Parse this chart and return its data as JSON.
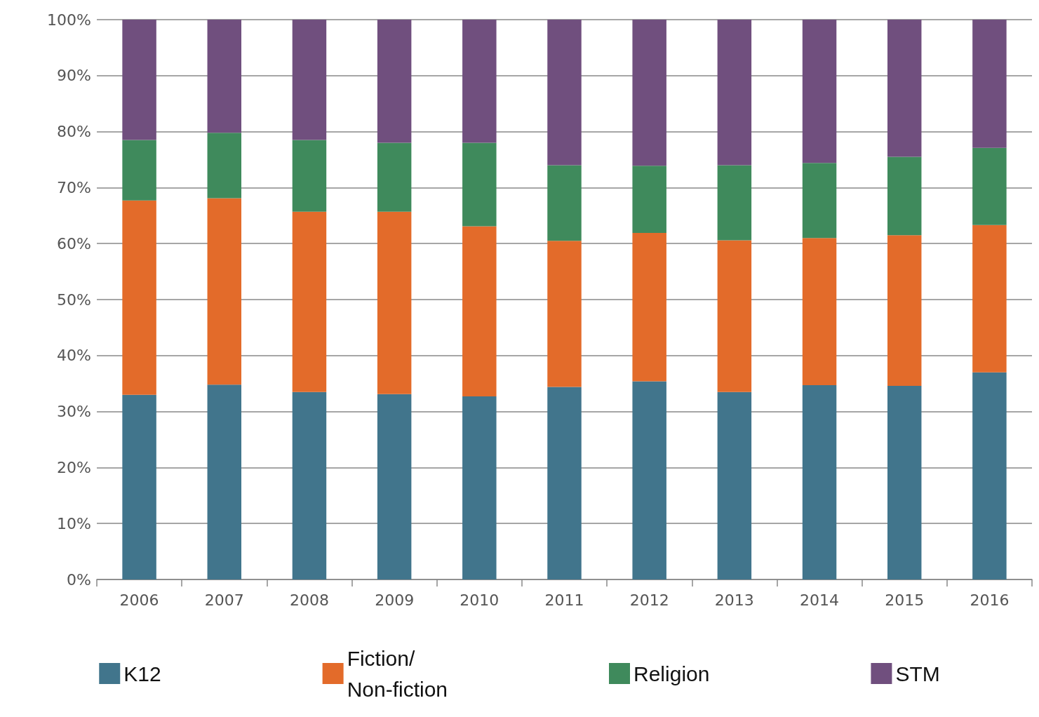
{
  "chart_data": {
    "type": "bar",
    "stacked": true,
    "categories": [
      "2006",
      "2007",
      "2008",
      "2009",
      "2010",
      "2011",
      "2012",
      "2013",
      "2014",
      "2015",
      "2016"
    ],
    "series": [
      {
        "name": "K12",
        "color": "#41758c",
        "values": [
          33.0,
          34.8,
          33.5,
          33.1,
          32.7,
          34.4,
          35.4,
          33.5,
          34.7,
          34.6,
          37.0
        ]
      },
      {
        "name": "Fiction/\nNon-fiction",
        "color": "#e36b2a",
        "values": [
          34.7,
          33.3,
          32.2,
          32.6,
          30.4,
          26.1,
          26.5,
          27.1,
          26.3,
          26.9,
          26.3
        ]
      },
      {
        "name": "Religion",
        "color": "#3f8a5c",
        "values": [
          10.8,
          11.7,
          12.8,
          12.3,
          14.9,
          13.5,
          12.0,
          13.4,
          13.4,
          14.0,
          13.8
        ]
      },
      {
        "name": "STM",
        "color": "#704f7e",
        "values": [
          21.5,
          20.2,
          21.5,
          22.0,
          22.0,
          26.0,
          26.1,
          26.0,
          25.6,
          24.5,
          22.9
        ]
      }
    ],
    "ylim": [
      0,
      100
    ],
    "yticks": [
      {
        "value": 0,
        "label": "0%"
      },
      {
        "value": 10,
        "label": "10%"
      },
      {
        "value": 20,
        "label": "20%"
      },
      {
        "value": 30,
        "label": "30%"
      },
      {
        "value": 40,
        "label": "40%"
      },
      {
        "value": 50,
        "label": "50%"
      },
      {
        "value": 60,
        "label": "60%"
      },
      {
        "value": 70,
        "label": "70%"
      },
      {
        "value": 80,
        "label": "80%"
      },
      {
        "value": 90,
        "label": "90%"
      },
      {
        "value": 100,
        "label": "100%"
      }
    ],
    "grid": "y",
    "legend": "bottom"
  }
}
